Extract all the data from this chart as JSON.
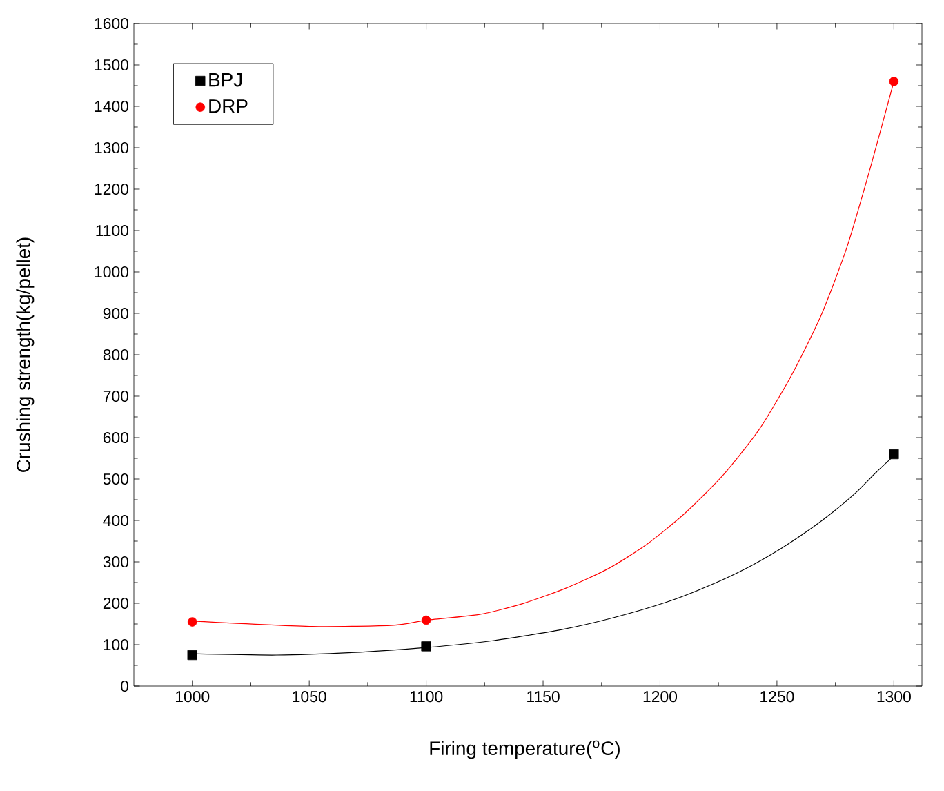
{
  "chart_data": {
    "type": "scatter",
    "xlabel": "Firing temperature($^{o}$C)",
    "ylabel": "Crushing strength(kg/pellet)",
    "xlim": [
      975,
      1312
    ],
    "ylim": [
      0,
      1600
    ],
    "xticks": [
      1000,
      1050,
      1100,
      1150,
      1200,
      1250,
      1300
    ],
    "yticks": [
      0,
      100,
      200,
      300,
      400,
      500,
      600,
      700,
      800,
      900,
      1000,
      1100,
      1200,
      1300,
      1400,
      1500,
      1600
    ],
    "legend": "top left",
    "grid": false,
    "series": [
      {
        "name": "BPJ",
        "marker": "square",
        "color": "#000000",
        "x": [
          1000,
          1100,
          1300
        ],
        "values": [
          75,
          96,
          560
        ]
      },
      {
        "name": "DRP",
        "marker": "circle",
        "color": "#ff0000",
        "x": [
          1000,
          1100,
          1300
        ],
        "values": [
          155,
          159,
          1460
        ]
      },
      {
        "type": "line",
        "marker": "none",
        "line_style": "solid",
        "color": "#000000",
        "x": [
          1000,
          1036.1,
          1071.8,
          1100,
          1129,
          1157.6,
          1180,
          1202.4,
          1220.8,
          1236.1,
          1251.4,
          1263.7,
          1273.9,
          1284.1,
          1292.2,
          1300
        ],
        "values": [
          78,
          75,
          82,
          93,
          110,
          136,
          165,
          202,
          242,
          282,
          331,
          377,
          420,
          469,
          515,
          556
        ]
      },
      {
        "type": "line",
        "marker": "none",
        "line_style": "solid",
        "color": "#ff0000",
        "x": [
          1000,
          1051.4,
          1086.1,
          1100,
          1122.9,
          1141.2,
          1159.6,
          1178,
          1194.3,
          1210.6,
          1226.9,
          1242.2,
          1255.9,
          1268.8,
          1280,
          1290.2,
          1300
        ],
        "values": [
          157,
          144,
          147,
          159,
          173,
          199,
          236,
          284,
          342,
          417,
          509,
          618,
          747,
          894,
          1061,
          1257,
          1460
        ]
      }
    ]
  }
}
